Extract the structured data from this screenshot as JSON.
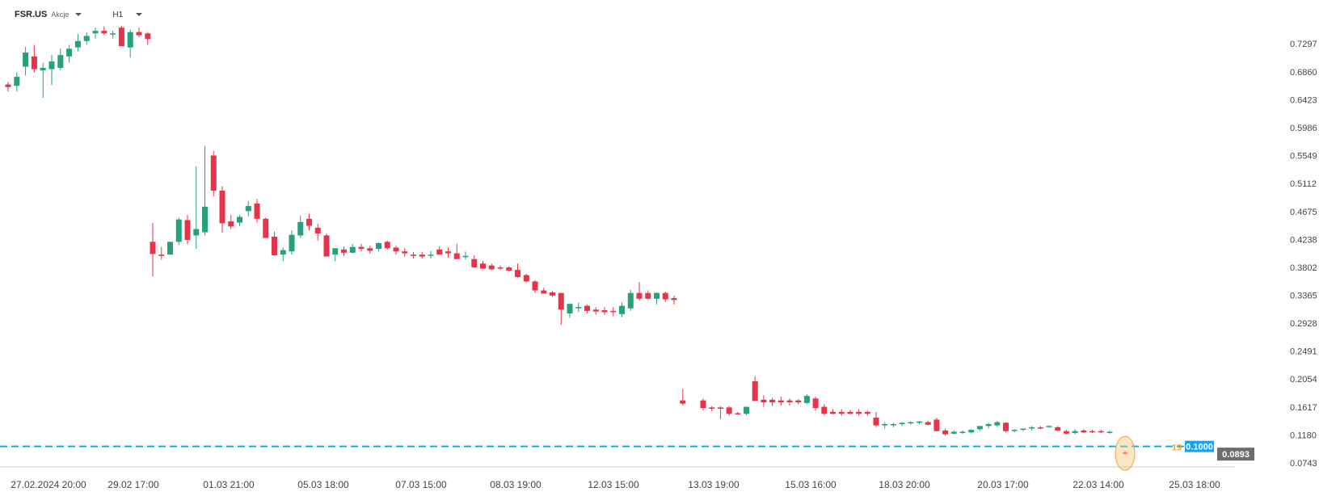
{
  "header": {
    "symbol": "FSR.US",
    "asset_type": "Akcje",
    "timeframe": "H1"
  },
  "colors": {
    "up": "#26a17b",
    "down": "#e8334a",
    "level_line": "#1aa3e8",
    "current_tag": "#6d6d6d",
    "highlight": "#f7c77a"
  },
  "chart_data": {
    "type": "candlestick",
    "y_ticks": [
      "0.7297",
      "0.6860",
      "0.6423",
      "0.5986",
      "0.5549",
      "0.5112",
      "0.4675",
      "0.4238",
      "0.3802",
      "0.3365",
      "0.2928",
      "0.2491",
      "0.2054",
      "0.1617",
      "0.1180",
      "0.0743"
    ],
    "x_ticks": [
      "27.02.2024  20:00",
      "29.02  17:00",
      "01.03  21:00",
      "05.03  18:00",
      "07.03  15:00",
      "08.03  19:00",
      "12.03  15:00",
      "13.03  19:00",
      "15.03  16:00",
      "18.03  20:00",
      "20.03  17:00",
      "22.03  14:00",
      "25.03  18:00"
    ],
    "ylim": [
      0.078,
      0.785
    ],
    "level_line": {
      "value": 0.1,
      "label": "0.1000"
    },
    "current_price": {
      "value": 0.0893,
      "label": "0.0893"
    },
    "countdown_label": "19",
    "candles": [
      [
        0.666,
        0.67,
        0.655,
        0.662
      ],
      [
        0.664,
        0.685,
        0.655,
        0.678
      ],
      [
        0.694,
        0.725,
        0.68,
        0.716
      ],
      [
        0.71,
        0.728,
        0.685,
        0.69
      ],
      [
        0.688,
        0.7,
        0.645,
        0.692
      ],
      [
        0.69,
        0.712,
        0.665,
        0.702
      ],
      [
        0.692,
        0.722,
        0.688,
        0.712
      ],
      [
        0.71,
        0.728,
        0.7,
        0.722
      ],
      [
        0.724,
        0.745,
        0.718,
        0.734
      ],
      [
        0.734,
        0.748,
        0.728,
        0.742
      ],
      [
        0.746,
        0.755,
        0.738,
        0.75
      ],
      [
        0.75,
        0.757,
        0.744,
        0.746
      ],
      [
        0.746,
        0.75,
        0.738,
        0.746
      ],
      [
        0.755,
        0.758,
        0.726,
        0.726
      ],
      [
        0.724,
        0.752,
        0.708,
        0.748
      ],
      [
        0.748,
        0.755,
        0.74,
        0.743
      ],
      [
        0.746,
        0.748,
        0.728,
        0.737
      ],
      [
        0.42,
        0.45,
        0.366,
        0.401
      ],
      [
        0.4,
        0.412,
        0.392,
        0.398
      ],
      [
        0.4,
        0.42,
        0.4,
        0.42
      ],
      [
        0.42,
        0.458,
        0.415,
        0.455
      ],
      [
        0.454,
        0.462,
        0.416,
        0.423
      ],
      [
        0.43,
        0.538,
        0.409,
        0.44
      ],
      [
        0.435,
        0.57,
        0.43,
        0.475
      ],
      [
        0.555,
        0.562,
        0.491,
        0.5
      ],
      [
        0.5,
        0.507,
        0.434,
        0.449
      ],
      [
        0.452,
        0.462,
        0.44,
        0.444
      ],
      [
        0.45,
        0.462,
        0.445,
        0.459
      ],
      [
        0.468,
        0.484,
        0.46,
        0.476
      ],
      [
        0.48,
        0.487,
        0.45,
        0.456
      ],
      [
        0.456,
        0.458,
        0.43,
        0.426
      ],
      [
        0.428,
        0.436,
        0.398,
        0.399
      ],
      [
        0.4,
        0.411,
        0.39,
        0.407
      ],
      [
        0.405,
        0.438,
        0.4,
        0.431
      ],
      [
        0.43,
        0.461,
        0.426,
        0.451
      ],
      [
        0.456,
        0.464,
        0.438,
        0.445
      ],
      [
        0.442,
        0.448,
        0.422,
        0.433
      ],
      [
        0.43,
        0.433,
        0.397,
        0.397
      ],
      [
        0.4,
        0.408,
        0.39,
        0.41
      ],
      [
        0.408,
        0.413,
        0.398,
        0.403
      ],
      [
        0.403,
        0.417,
        0.402,
        0.412
      ],
      [
        0.412,
        0.417,
        0.405,
        0.409
      ],
      [
        0.41,
        0.414,
        0.402,
        0.406
      ],
      [
        0.409,
        0.419,
        0.405,
        0.418
      ],
      [
        0.42,
        0.422,
        0.408,
        0.41
      ],
      [
        0.411,
        0.414,
        0.4,
        0.405
      ],
      [
        0.405,
        0.41,
        0.397,
        0.402
      ],
      [
        0.4,
        0.404,
        0.394,
        0.398
      ],
      [
        0.4,
        0.404,
        0.394,
        0.397
      ],
      [
        0.4,
        0.406,
        0.394,
        0.4
      ],
      [
        0.408,
        0.413,
        0.4,
        0.4
      ],
      [
        0.405,
        0.411,
        0.395,
        0.402
      ],
      [
        0.402,
        0.417,
        0.395,
        0.393
      ],
      [
        0.398,
        0.405,
        0.392,
        0.398
      ],
      [
        0.393,
        0.399,
        0.38,
        0.38
      ],
      [
        0.386,
        0.39,
        0.378,
        0.378
      ],
      [
        0.383,
        0.386,
        0.376,
        0.377
      ],
      [
        0.38,
        0.383,
        0.376,
        0.378
      ],
      [
        0.38,
        0.382,
        0.374,
        0.375
      ],
      [
        0.376,
        0.386,
        0.364,
        0.365
      ],
      [
        0.368,
        0.37,
        0.356,
        0.358
      ],
      [
        0.358,
        0.36,
        0.34,
        0.344
      ],
      [
        0.344,
        0.348,
        0.34,
        0.339
      ],
      [
        0.341,
        0.343,
        0.334,
        0.336
      ],
      [
        0.34,
        0.34,
        0.29,
        0.314
      ],
      [
        0.308,
        0.32,
        0.301,
        0.323
      ],
      [
        0.318,
        0.325,
        0.31,
        0.318
      ],
      [
        0.32,
        0.322,
        0.308,
        0.312
      ],
      [
        0.314,
        0.318,
        0.306,
        0.311
      ],
      [
        0.313,
        0.318,
        0.306,
        0.31
      ],
      [
        0.312,
        0.318,
        0.304,
        0.31
      ],
      [
        0.307,
        0.325,
        0.302,
        0.32
      ],
      [
        0.316,
        0.345,
        0.312,
        0.34
      ],
      [
        0.34,
        0.357,
        0.328,
        0.331
      ],
      [
        0.34,
        0.344,
        0.33,
        0.331
      ],
      [
        0.331,
        0.341,
        0.322,
        0.34
      ],
      [
        0.34,
        0.342,
        0.326,
        0.33
      ],
      [
        0.332,
        0.336,
        0.322,
        0.329
      ],
      [
        0.172,
        0.19,
        0.164,
        0.167
      ],
      [
        0.172,
        0.175,
        0.157,
        0.16
      ],
      [
        0.161,
        0.163,
        0.155,
        0.159
      ],
      [
        0.161,
        0.163,
        0.143,
        0.159
      ],
      [
        0.161,
        0.163,
        0.148,
        0.151
      ],
      [
        0.152,
        0.154,
        0.15,
        0.15
      ],
      [
        0.151,
        0.162,
        0.149,
        0.162
      ],
      [
        0.202,
        0.21,
        0.171,
        0.171
      ],
      [
        0.173,
        0.18,
        0.162,
        0.169
      ],
      [
        0.173,
        0.176,
        0.163,
        0.169
      ],
      [
        0.172,
        0.178,
        0.164,
        0.169
      ],
      [
        0.172,
        0.175,
        0.164,
        0.169
      ],
      [
        0.172,
        0.174,
        0.166,
        0.169
      ],
      [
        0.168,
        0.182,
        0.166,
        0.179
      ],
      [
        0.175,
        0.178,
        0.156,
        0.16
      ],
      [
        0.162,
        0.166,
        0.148,
        0.151
      ],
      [
        0.154,
        0.158,
        0.15,
        0.151
      ],
      [
        0.154,
        0.158,
        0.148,
        0.151
      ],
      [
        0.154,
        0.157,
        0.15,
        0.151
      ],
      [
        0.154,
        0.158,
        0.148,
        0.151
      ],
      [
        0.154,
        0.156,
        0.148,
        0.151
      ],
      [
        0.145,
        0.154,
        0.13,
        0.133
      ],
      [
        0.133,
        0.138,
        0.128,
        0.135
      ],
      [
        0.133,
        0.137,
        0.13,
        0.135
      ],
      [
        0.135,
        0.138,
        0.132,
        0.137
      ],
      [
        0.137,
        0.139,
        0.134,
        0.138
      ],
      [
        0.138,
        0.14,
        0.135,
        0.139
      ],
      [
        0.138,
        0.14,
        0.133,
        0.134
      ],
      [
        0.142,
        0.145,
        0.124,
        0.124
      ],
      [
        0.125,
        0.128,
        0.117,
        0.119
      ],
      [
        0.12,
        0.125,
        0.119,
        0.123
      ],
      [
        0.122,
        0.125,
        0.12,
        0.123
      ],
      [
        0.122,
        0.127,
        0.12,
        0.126
      ],
      [
        0.127,
        0.132,
        0.124,
        0.132
      ],
      [
        0.132,
        0.137,
        0.128,
        0.135
      ],
      [
        0.133,
        0.14,
        0.13,
        0.138
      ],
      [
        0.137,
        0.138,
        0.122,
        0.124
      ],
      [
        0.125,
        0.127,
        0.122,
        0.126
      ],
      [
        0.126,
        0.128,
        0.124,
        0.128
      ],
      [
        0.129,
        0.132,
        0.125,
        0.13
      ],
      [
        0.13,
        0.132,
        0.127,
        0.128
      ],
      [
        0.131,
        0.133,
        0.129,
        0.132
      ],
      [
        0.13,
        0.132,
        0.124,
        0.125
      ],
      [
        0.124,
        0.126,
        0.119,
        0.12
      ],
      [
        0.121,
        0.127,
        0.119,
        0.124
      ],
      [
        0.125,
        0.127,
        0.121,
        0.122
      ],
      [
        0.124,
        0.126,
        0.121,
        0.123
      ],
      [
        0.124,
        0.126,
        0.121,
        0.122
      ],
      [
        0.122,
        0.125,
        0.12,
        0.123
      ],
      [
        0.0905,
        0.0935,
        0.088,
        0.0893
      ]
    ]
  }
}
